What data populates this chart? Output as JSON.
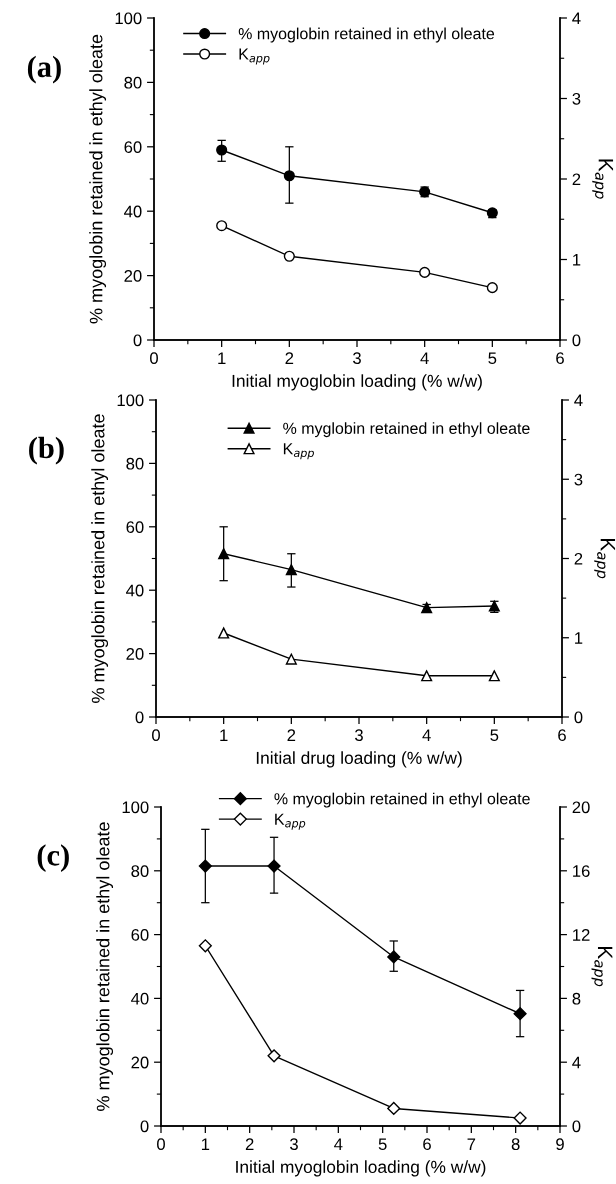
{
  "chart_data": [
    {
      "type": "line",
      "annotations": [
        "(a)"
      ],
      "xlabel": "Initial myoglobin loading (% w/w)",
      "ylabel": "% myoglobin retained in ethyl oleate",
      "y2label": "K$_{app}$",
      "xlim": [
        0,
        6
      ],
      "xticks": [
        0,
        1,
        2,
        3,
        4,
        5,
        6
      ],
      "ylim": [
        0,
        100
      ],
      "yticks": [
        0,
        20,
        40,
        60,
        80,
        100
      ],
      "y2lim": [
        0,
        4
      ],
      "y2ticks": [
        0,
        1,
        2,
        3,
        4
      ],
      "legend": "top left",
      "grid": false,
      "series": [
        {
          "name": "% myoglobin retained in ethyl oleate",
          "color": "#000000",
          "marker": "circle",
          "x": [
            1,
            2,
            4,
            5
          ],
          "values": [
            59,
            51,
            46,
            39.5
          ],
          "errors": [
            [
              55.5,
              62
            ],
            [
              42.5,
              60
            ],
            [
              44.5,
              47.5
            ],
            [
              38,
              40.5
            ]
          ]
        },
        {
          "name": "K$_{app}$",
          "color": "#000000",
          "marker": "circle",
          "axis": "y2",
          "x": [
            1,
            2,
            4,
            5
          ],
          "values": [
            1.42,
            1.04,
            0.84,
            0.65
          ]
        }
      ]
    },
    {
      "type": "line",
      "annotations": [
        "(b)"
      ],
      "xlabel": "Initial drug loading (% w/w)",
      "ylabel": "% myoglobin retained in ethyl oleate",
      "y2label": "K$_{app}$",
      "xlim": [
        0,
        6
      ],
      "xticks": [
        0,
        1,
        2,
        3,
        4,
        5,
        6
      ],
      "ylim": [
        0,
        100
      ],
      "yticks": [
        0,
        20,
        40,
        60,
        80,
        100
      ],
      "y2lim": [
        0,
        4
      ],
      "y2ticks": [
        0,
        1,
        2,
        3,
        4
      ],
      "legend": "top",
      "grid": false,
      "series": [
        {
          "name": "% myglobin retained in ethyl oleate",
          "color": "#000000",
          "marker": "triangle",
          "x": [
            1,
            2,
            4,
            5
          ],
          "values": [
            51.5,
            46.5,
            34.5,
            35
          ],
          "errors": [
            [
              43,
              60
            ],
            [
              41,
              51.5
            ],
            [
              33.5,
              35.5
            ],
            [
              33,
              36.5
            ]
          ]
        },
        {
          "name": "K$_{app}$",
          "color": "#000000",
          "marker": "triangle",
          "axis": "y2",
          "x": [
            1,
            2,
            4,
            5
          ],
          "values": [
            1.06,
            0.73,
            0.52,
            0.52
          ]
        }
      ]
    },
    {
      "type": "line",
      "annotations": [
        "(c)"
      ],
      "xlabel": "Initial myoglobin loading (% w/w)",
      "ylabel": "% myoglobin retained in ethyl oleate",
      "y2label": "K$_{app}$",
      "xlim": [
        0,
        9
      ],
      "xticks": [
        0,
        1,
        2,
        3,
        4,
        5,
        6,
        7,
        8,
        9
      ],
      "ylim": [
        0,
        100
      ],
      "yticks": [
        0,
        20,
        40,
        60,
        80,
        100
      ],
      "y2lim": [
        0,
        20
      ],
      "y2ticks": [
        0,
        4,
        8,
        12,
        16,
        20
      ],
      "legend": "top right",
      "grid": false,
      "series": [
        {
          "name": "% myoglobin retained in ethyl oleate",
          "color": "#000000",
          "marker": "diamond",
          "x": [
            1.0,
            2.55,
            5.25,
            8.1
          ],
          "values": [
            81.5,
            81.5,
            53,
            35.2
          ],
          "errors": [
            [
              70,
              93
            ],
            [
              73,
              90.5
            ],
            [
              48.5,
              58
            ],
            [
              28,
              42.5
            ]
          ]
        },
        {
          "name": "K$_{app}$",
          "color": "#000000",
          "marker": "diamond",
          "axis": "y2",
          "x": [
            1.0,
            2.55,
            5.25,
            8.1
          ],
          "values": [
            11.3,
            4.4,
            1.1,
            0.5
          ]
        }
      ]
    }
  ]
}
